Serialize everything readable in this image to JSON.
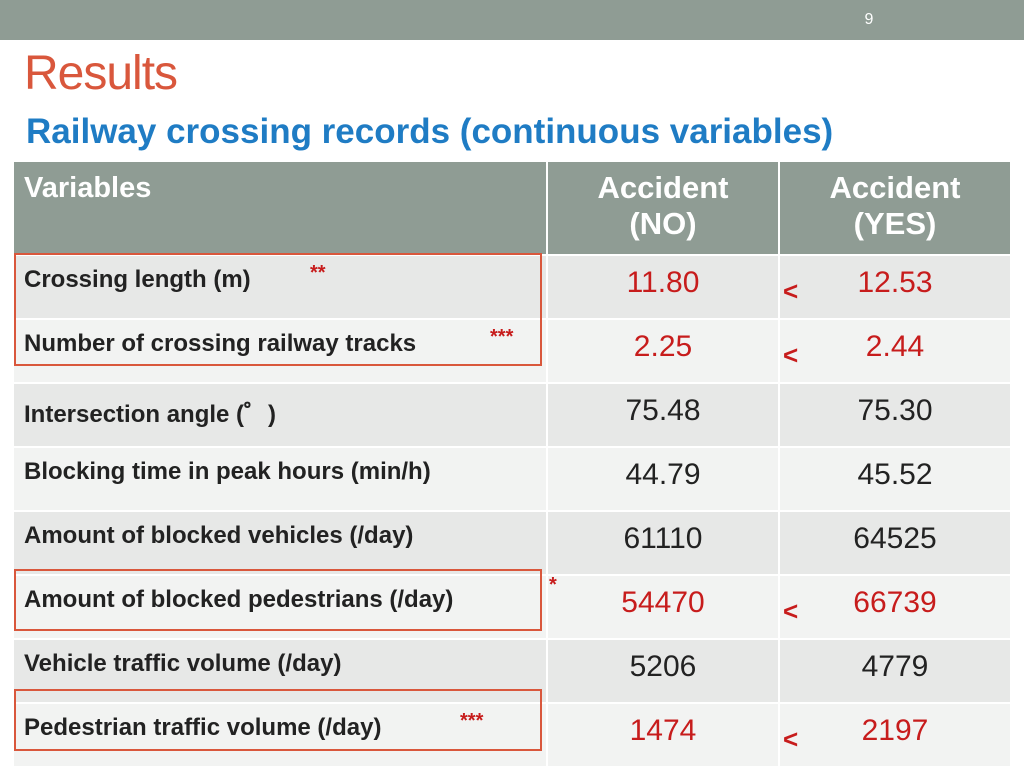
{
  "page_number": "9",
  "title": "Results",
  "subtitle": "Railway crossing records (continuous variables)",
  "table": {
    "headers": {
      "variables": "Variables",
      "accident_no": "Accident\n(NO)",
      "accident_yes": "Accident\n(YES)"
    },
    "rows": [
      {
        "label": "Crossing length (m)",
        "sig": "**",
        "no": "11.80",
        "yes": "12.53",
        "compare": "<"
      },
      {
        "label": "Number of crossing railway tracks",
        "sig": "***",
        "no": "2.25",
        "yes": "2.44",
        "compare": "<"
      },
      {
        "label": "Intersection angle (゜)",
        "sig": "",
        "no": "75.48",
        "yes": "75.30",
        "compare": ""
      },
      {
        "label": "Blocking time in peak hours (min/h)",
        "sig": "",
        "no": "44.79",
        "yes": "45.52",
        "compare": ""
      },
      {
        "label": "Amount of blocked vehicles (/day)",
        "sig": "",
        "no": "61110",
        "yes": "64525",
        "compare": ""
      },
      {
        "label": "Amount of blocked pedestrians (/day)",
        "sig": "*",
        "no": "54470",
        "yes": "66739",
        "compare": "<"
      },
      {
        "label": "Vehicle traffic volume (/day)",
        "sig": "",
        "no": "5206",
        "yes": "4779",
        "compare": ""
      },
      {
        "label": "Pedestrian traffic volume (/day)",
        "sig": "***",
        "no": "1474",
        "yes": "2197",
        "compare": "<"
      }
    ]
  },
  "colors": {
    "header_bg": "#8f9c94",
    "title": "#d9573c",
    "subtitle": "#1f7cc4",
    "significant": "#c71c1c"
  }
}
